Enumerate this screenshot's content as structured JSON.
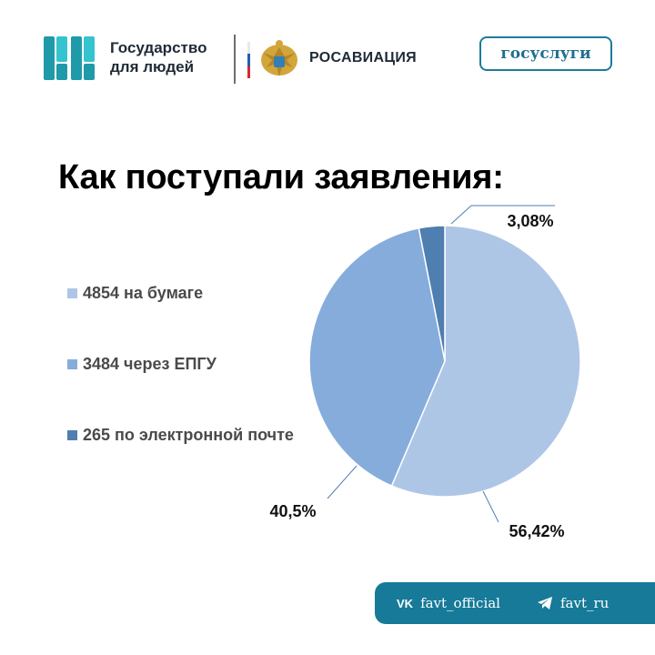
{
  "header": {
    "brand_line1": "Государство",
    "brand_line2": "для людей",
    "agency_name": "РОСАВИАЦИЯ",
    "gosuslugi_label": "госуслуги"
  },
  "title": "Как поступали заявления:",
  "colors": {
    "paper": "#aec6e6",
    "epgu": "#86acdc",
    "email": "#4f7eb0",
    "brand_teal": "#1f9aa8",
    "footer_bg": "#167a98",
    "flag_white": "#ffffff",
    "flag_blue": "#1f5fb0",
    "flag_red": "#d52b2b"
  },
  "footer": {
    "vk_icon": "vk-icon",
    "vk_label": "favt_official",
    "telegram_icon": "telegram-icon",
    "telegram_label": "favt_ru"
  },
  "chart_data": {
    "type": "pie",
    "title": "Как поступали заявления:",
    "categories": [
      "4854 на бумаге",
      "3484 через ЕПГУ",
      "265 по электронной почте"
    ],
    "values": [
      56.42,
      40.5,
      3.08
    ],
    "data_labels": [
      "56,42%",
      "40,5%",
      "3,08%"
    ],
    "counts": [
      4854,
      3484,
      265
    ],
    "legend_position": "left",
    "series": [
      {
        "label": "4854 на бумаге",
        "value": 56.42
      },
      {
        "label": "3484 через ЕПГУ",
        "value": 40.5
      },
      {
        "label": "265 по электронной почте",
        "value": 3.08
      }
    ]
  }
}
